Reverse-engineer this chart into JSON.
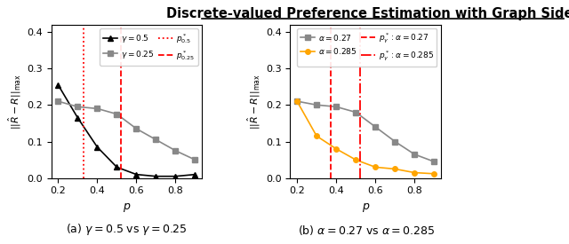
{
  "title": "Discrete-valued Preference Estimation with Graph Side Information",
  "title_fontsize": 10.5,
  "p_values": [
    0.2,
    0.3,
    0.4,
    0.5,
    0.6,
    0.7,
    0.8,
    0.9
  ],
  "ax1": {
    "gamma05_y": [
      0.255,
      0.165,
      0.085,
      0.03,
      0.01,
      0.005,
      0.005,
      0.01
    ],
    "gamma025_y": [
      0.21,
      0.195,
      0.19,
      0.175,
      0.135,
      0.105,
      0.075,
      0.05
    ],
    "vline_dotted": 0.33,
    "vline_dashed": 0.52,
    "xlabel": "p",
    "ylabel": "$||\\hat{R} - R||_\\mathrm{max}$",
    "ylim": [
      0,
      0.42
    ],
    "yticks": [
      0.0,
      0.1,
      0.2,
      0.3,
      0.4
    ],
    "xticks": [
      0.2,
      0.4,
      0.6,
      0.8
    ],
    "caption": "(a) $\\gamma = 0.5$ vs $\\gamma = 0.25$",
    "leg_label_0": "$\\gamma = 0.5$",
    "leg_label_1": "$\\gamma = 0.25$",
    "leg_label_2": "$p^*_{0.5}$",
    "leg_label_3": "$p^*_{0.25}$"
  },
  "ax2": {
    "alpha027_y": [
      0.21,
      0.2,
      0.195,
      0.18,
      0.14,
      0.1,
      0.065,
      0.045
    ],
    "alpha0285_y": [
      0.21,
      0.115,
      0.08,
      0.05,
      0.03,
      0.025,
      0.015,
      0.012
    ],
    "vline_dashed": 0.37,
    "vline_dashdot": 0.52,
    "xlabel": "p",
    "ylabel": "$||\\hat{R} - R||_\\mathrm{max}$",
    "ylim": [
      0,
      0.42
    ],
    "yticks": [
      0.0,
      0.1,
      0.2,
      0.3,
      0.4
    ],
    "xticks": [
      0.2,
      0.4,
      0.6,
      0.8
    ],
    "caption": "(b) $\\alpha = 0.27$ vs $\\alpha = 0.285$",
    "leg_label_0": "$\\alpha = 0.27$",
    "leg_label_1": "$\\alpha = 0.285$",
    "leg_label_2": "$p^*_\\gamma: \\alpha = 0.27$",
    "leg_label_3": "$p^*_\\gamma: \\alpha = 0.285$"
  },
  "line_color_black": "#000000",
  "line_color_gray": "#888888",
  "line_color_orange": "#FFA500",
  "line_color_red": "#FF0000",
  "bg_color": "#ffffff"
}
